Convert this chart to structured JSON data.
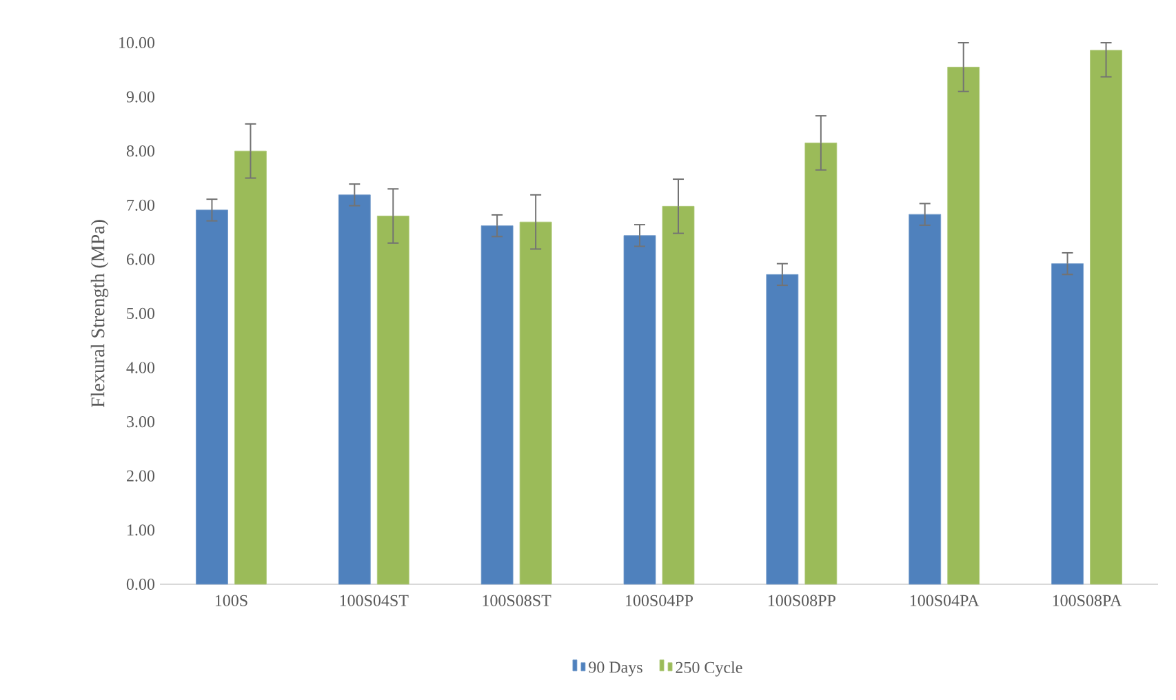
{
  "chart_data": {
    "type": "bar",
    "ylabel": "Flexural Strength (MPa)",
    "categories": [
      "100S",
      "100S04ST",
      "100S08ST",
      "100S04PP",
      "100S08PP",
      "100S04PA",
      "100S08PA"
    ],
    "series": [
      {
        "name": "90 Days",
        "color": "#4f81bd",
        "values": [
          6.91,
          7.19,
          6.62,
          6.44,
          5.72,
          6.83,
          5.92
        ],
        "errors": [
          0.2,
          0.2,
          0.2,
          0.2,
          0.2,
          0.2,
          0.2
        ]
      },
      {
        "name": "250 Cycle",
        "color": "#9bbb59",
        "values": [
          8.0,
          6.8,
          6.69,
          6.98,
          8.15,
          9.55,
          9.86
        ],
        "errors": [
          0.5,
          0.5,
          0.5,
          0.5,
          0.5,
          0.45,
          [
            9.37,
            10.0
          ]
        ]
      }
    ],
    "ylim": [
      0,
      10
    ],
    "yticks": [
      {
        "value": 0,
        "label": "0.00"
      },
      {
        "value": 1,
        "label": "1.00"
      },
      {
        "value": 2,
        "label": "2.00"
      },
      {
        "value": 3,
        "label": "3.00"
      },
      {
        "value": 4,
        "label": "4.00"
      },
      {
        "value": 5,
        "label": "5.00"
      },
      {
        "value": 6,
        "label": "6.00"
      },
      {
        "value": 7,
        "label": "7.00"
      },
      {
        "value": 8,
        "label": "8.00"
      },
      {
        "value": 9,
        "label": "9.00"
      },
      {
        "value": 10,
        "label": "10.00"
      }
    ],
    "legend": "bottom",
    "grid": false
  }
}
